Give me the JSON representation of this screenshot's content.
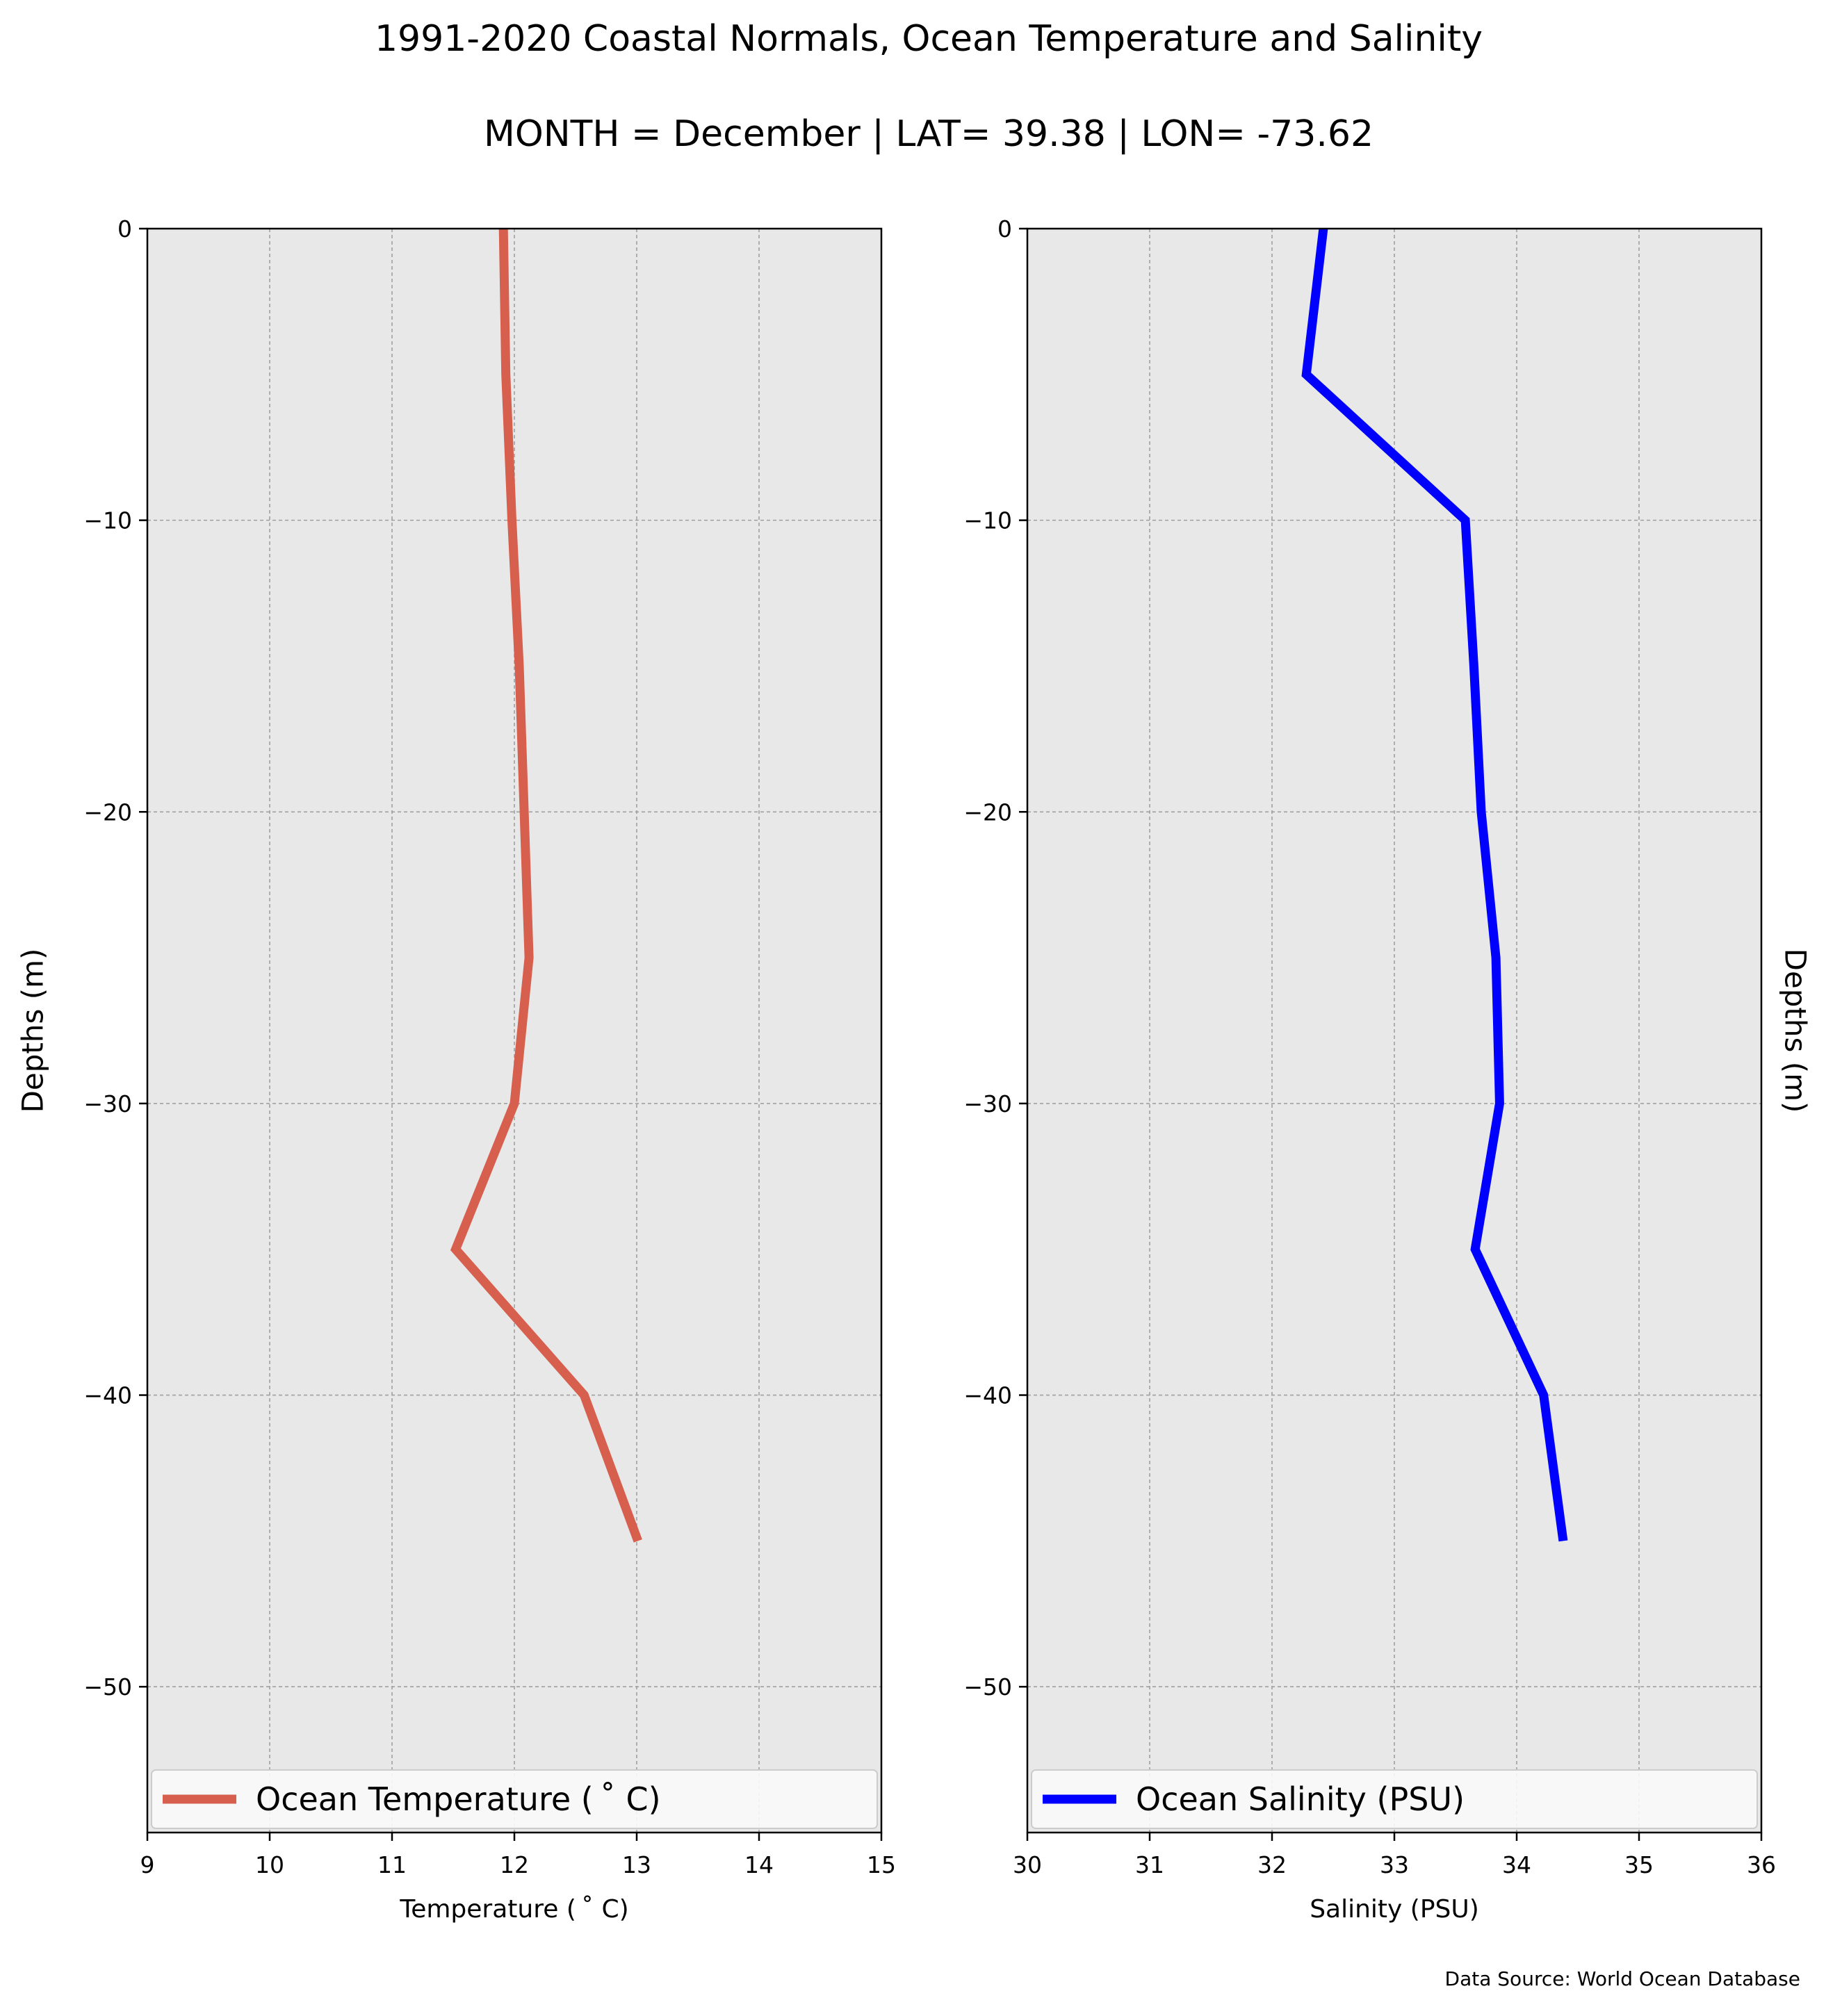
{
  "figure": {
    "title_line1": "1991-2020 Coastal Normals, Ocean Temperature and Salinity",
    "title_line2": "MONTH = December | LAT= 39.38 | LON= -73.62",
    "source": "Data Source: World Ocean Database"
  },
  "colors": {
    "panel_background": "#e8e8e8",
    "grid": "#a0a0a0",
    "temperature": "#d65f4e",
    "salinity": "#0000ff"
  },
  "chart_data": [
    {
      "type": "line",
      "series": [
        {
          "name": "Ocean Temperature ($^\\circ$C)",
          "legend_label": "Ocean Temperature ( ˚ C)",
          "x": [
            11.91,
            11.93,
            11.98,
            12.04,
            12.08,
            12.12,
            12.0,
            11.52,
            12.57,
            13.01
          ],
          "y": [
            0,
            -5,
            -10,
            -15,
            -20,
            -25,
            -30,
            -35,
            -40,
            -45
          ]
        }
      ],
      "xlabel": "Temperature ( ˚ C)",
      "ylabel": "Depths (m)",
      "xlim": [
        9,
        15
      ],
      "ylim": [
        -55,
        0
      ],
      "xticks": [
        "9",
        "10",
        "11",
        "12",
        "13",
        "14",
        "15"
      ],
      "yticks": [
        "0",
        "−10",
        "−20",
        "−30",
        "−40",
        "−50"
      ],
      "ytick_values": [
        0,
        -10,
        -20,
        -30,
        -40,
        -50
      ],
      "xtick_values": [
        9,
        10,
        11,
        12,
        13,
        14,
        15
      ],
      "grid": true,
      "legend": "lower-center"
    },
    {
      "type": "line",
      "series": [
        {
          "name": "Ocean Salinity (PSU)",
          "legend_label": "Ocean Salinity (PSU)",
          "x": [
            32.42,
            32.28,
            33.58,
            33.65,
            33.71,
            33.83,
            33.86,
            33.66,
            34.22,
            34.38
          ],
          "y": [
            0,
            -5,
            -10,
            -15,
            -20,
            -25,
            -30,
            -35,
            -40,
            -45
          ]
        }
      ],
      "xlabel": "Salinity (PSU)",
      "ylabel": "Depths (m)",
      "xlim": [
        30,
        36
      ],
      "ylim": [
        -55,
        0
      ],
      "xticks": [
        "30",
        "31",
        "32",
        "33",
        "34",
        "35",
        "36"
      ],
      "yticks": [
        "0",
        "−10",
        "−20",
        "−30",
        "−40",
        "−50"
      ],
      "ytick_values": [
        0,
        -10,
        -20,
        -30,
        -40,
        -50
      ],
      "xtick_values": [
        30,
        31,
        32,
        33,
        34,
        35,
        36
      ],
      "grid": true,
      "legend": "lower-center"
    }
  ]
}
